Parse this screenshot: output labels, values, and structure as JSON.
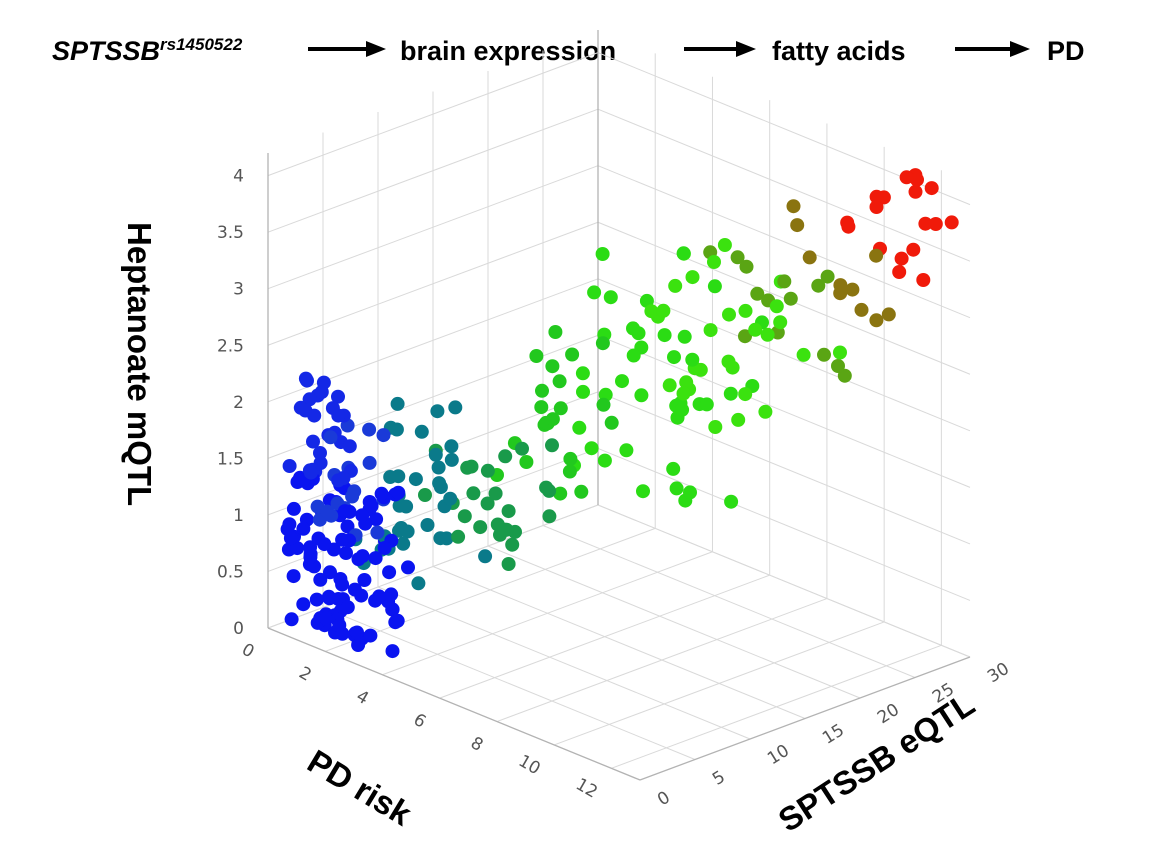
{
  "header": {
    "gene": "SPTSSB",
    "snp": "rs1450522",
    "steps": [
      "brain expression",
      "fatty acids",
      "PD"
    ]
  },
  "chart_data": {
    "type": "scatter",
    "title": "",
    "axes": {
      "x": {
        "label": "PD risk",
        "range": [
          0,
          13
        ],
        "ticks": [
          0,
          2,
          4,
          6,
          8,
          10,
          12
        ]
      },
      "y": {
        "label": "SPTSSB eQTL",
        "range": [
          0,
          30
        ],
        "ticks": [
          0,
          5,
          10,
          15,
          20,
          25,
          30
        ]
      },
      "z": {
        "label": "Heptanoate mQTL",
        "range": [
          0,
          4.2
        ],
        "ticks": [
          "0",
          "0.5",
          "1",
          "1.5",
          "2",
          "2.5",
          "3",
          "3.5",
          "4"
        ]
      }
    },
    "color_scale": [
      "#0000ff",
      "#008080",
      "#00ff00",
      "#808000",
      "#ff0000"
    ],
    "groups": [
      {
        "name": "blue-main",
        "color": "#0a14f0",
        "n": 95,
        "x": [
          0.3,
          3.2
        ],
        "y": [
          0.3,
          4.5
        ],
        "z": [
          0.0,
          1.4
        ]
      },
      {
        "name": "blue-upper",
        "color": "#1428e6",
        "n": 28,
        "x": [
          0.5,
          2.2
        ],
        "y": [
          0.5,
          3.0
        ],
        "z": [
          1.3,
          2.3
        ]
      },
      {
        "name": "blue-mid",
        "color": "#1a3ad8",
        "n": 18,
        "x": [
          1.0,
          3.0
        ],
        "y": [
          1.0,
          4.0
        ],
        "z": [
          0.9,
          1.9
        ]
      },
      {
        "name": "teal",
        "color": "#0a7a8a",
        "n": 34,
        "x": [
          1.5,
          4.5
        ],
        "y": [
          3.0,
          9.0
        ],
        "z": [
          0.6,
          2.0
        ]
      },
      {
        "name": "teal-green",
        "color": "#199a4a",
        "n": 26,
        "x": [
          3.0,
          6.0
        ],
        "y": [
          6.0,
          11.0
        ],
        "z": [
          0.9,
          1.9
        ]
      },
      {
        "name": "green",
        "color": "#22c81e",
        "n": 22,
        "x": [
          4.0,
          7.0
        ],
        "y": [
          9.0,
          14.0
        ],
        "z": [
          1.2,
          2.8
        ]
      },
      {
        "name": "bright-green",
        "color": "#2bdc14",
        "n": 40,
        "x": [
          6.0,
          11.0
        ],
        "y": [
          11.0,
          18.0
        ],
        "z": [
          1.5,
          3.6
        ]
      },
      {
        "name": "lime",
        "color": "#3be20f",
        "n": 30,
        "x": [
          7.0,
          12.0
        ],
        "y": [
          14.0,
          21.0
        ],
        "z": [
          2.2,
          3.5
        ]
      },
      {
        "name": "olive-green",
        "color": "#5aa514",
        "n": 14,
        "x": [
          8.0,
          12.0
        ],
        "y": [
          19.0,
          24.0
        ],
        "z": [
          2.4,
          3.6
        ]
      },
      {
        "name": "olive",
        "color": "#8a7410",
        "n": 10,
        "x": [
          8.0,
          12.0
        ],
        "y": [
          22.0,
          27.0
        ],
        "z": [
          2.4,
          3.8
        ]
      },
      {
        "name": "red",
        "color": "#f01a0a",
        "n": 18,
        "x": [
          10.0,
          13.0
        ],
        "y": [
          26.0,
          30.0
        ],
        "z": [
          3.2,
          4.2
        ]
      }
    ]
  }
}
